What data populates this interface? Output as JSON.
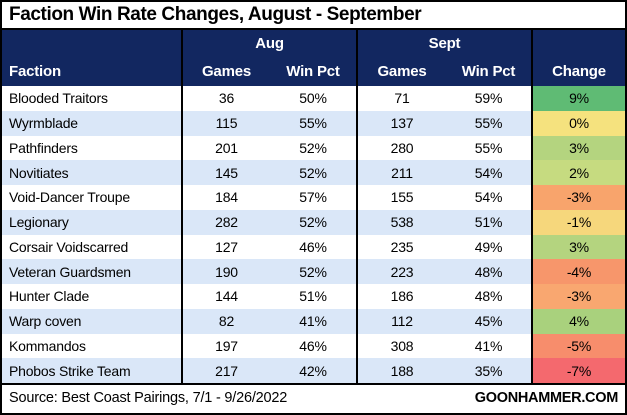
{
  "title": "Faction Win Rate Changes, August - September",
  "colors": {
    "header_bg": "#122760",
    "stripe_bg": "#DAE7F8",
    "border": "#000000"
  },
  "header": {
    "faction_label": "Faction",
    "group_aug": "Aug",
    "group_sept": "Sept",
    "aug_games_label": "Games",
    "aug_winpct_label": "Win Pct",
    "sept_games_label": "Games",
    "sept_winpct_label": "Win Pct",
    "change_label": "Change"
  },
  "table": {
    "rows": [
      {
        "faction": "Blooded Traitors",
        "aug_games": "36",
        "aug_win_pct": "50%",
        "sept_games": "71",
        "sept_win_pct": "59%",
        "change": "9%",
        "change_color": "#5FBB74"
      },
      {
        "faction": "Wyrmblade",
        "aug_games": "115",
        "aug_win_pct": "55%",
        "sept_games": "137",
        "sept_win_pct": "55%",
        "change": "0%",
        "change_color": "#F5E27E"
      },
      {
        "faction": "Pathfinders",
        "aug_games": "201",
        "aug_win_pct": "52%",
        "sept_games": "280",
        "sept_win_pct": "55%",
        "change": "3%",
        "change_color": "#B4D47F"
      },
      {
        "faction": "Novitiates",
        "aug_games": "145",
        "aug_win_pct": "52%",
        "sept_games": "211",
        "sept_win_pct": "54%",
        "change": "2%",
        "change_color": "#C6DB80"
      },
      {
        "faction": "Void-Dancer Troupe",
        "aug_games": "184",
        "aug_win_pct": "57%",
        "sept_games": "155",
        "sept_win_pct": "54%",
        "change": "-3%",
        "change_color": "#F8A46C"
      },
      {
        "faction": "Legionary",
        "aug_games": "282",
        "aug_win_pct": "52%",
        "sept_games": "538",
        "sept_win_pct": "51%",
        "change": "-1%",
        "change_color": "#F6D77C"
      },
      {
        "faction": "Corsair Voidscarred",
        "aug_games": "127",
        "aug_win_pct": "46%",
        "sept_games": "235",
        "sept_win_pct": "49%",
        "change": "3%",
        "change_color": "#B4D47F"
      },
      {
        "faction": "Veteran Guardsmen",
        "aug_games": "190",
        "aug_win_pct": "52%",
        "sept_games": "223",
        "sept_win_pct": "48%",
        "change": "-4%",
        "change_color": "#F7966B"
      },
      {
        "faction": "Hunter Clade",
        "aug_games": "144",
        "aug_win_pct": "51%",
        "sept_games": "186",
        "sept_win_pct": "48%",
        "change": "-3%",
        "change_color": "#F9A770"
      },
      {
        "faction": "Warp coven",
        "aug_games": "82",
        "aug_win_pct": "41%",
        "sept_games": "112",
        "sept_win_pct": "45%",
        "change": "4%",
        "change_color": "#A9D17D"
      },
      {
        "faction": "Kommandos",
        "aug_games": "197",
        "aug_win_pct": "46%",
        "sept_games": "308",
        "sept_win_pct": "41%",
        "change": "-5%",
        "change_color": "#F78D6C"
      },
      {
        "faction": "Phobos Strike Team",
        "aug_games": "217",
        "aug_win_pct": "42%",
        "sept_games": "188",
        "sept_win_pct": "35%",
        "change": "-7%",
        "change_color": "#F4696E"
      }
    ]
  },
  "footer": {
    "source": "Source: Best Coast Pairings, 7/1 - 9/26/2022",
    "brand": "GOONHAMMER.COM"
  },
  "chart_data": {
    "type": "table",
    "title": "Faction Win Rate Changes, August - September",
    "columns": [
      "Faction",
      "Aug Games",
      "Aug Win Pct",
      "Sept Games",
      "Sept Win Pct",
      "Change"
    ],
    "rows": [
      [
        "Blooded Traitors",
        36,
        "50%",
        71,
        "59%",
        "9%"
      ],
      [
        "Wyrmblade",
        115,
        "55%",
        137,
        "55%",
        "0%"
      ],
      [
        "Pathfinders",
        201,
        "52%",
        280,
        "55%",
        "3%"
      ],
      [
        "Novitiates",
        145,
        "52%",
        211,
        "54%",
        "2%"
      ],
      [
        "Void-Dancer Troupe",
        184,
        "57%",
        155,
        "54%",
        "-3%"
      ],
      [
        "Legionary",
        282,
        "52%",
        538,
        "51%",
        "-1%"
      ],
      [
        "Corsair Voidscarred",
        127,
        "46%",
        235,
        "49%",
        "3%"
      ],
      [
        "Veteran Guardsmen",
        190,
        "52%",
        223,
        "48%",
        "-4%"
      ],
      [
        "Hunter Clade",
        144,
        "51%",
        186,
        "48%",
        "-3%"
      ],
      [
        "Warp coven",
        82,
        "41%",
        112,
        "45%",
        "4%"
      ],
      [
        "Kommandos",
        197,
        "46%",
        308,
        "41%",
        "-5%"
      ],
      [
        "Phobos Strike Team",
        217,
        "42%",
        188,
        "35%",
        "-7%"
      ]
    ],
    "conditional_formatting": "Change column: 3-color scale red (#F4696E, -7%) through yellow (#F5E27E, 0%) to green (#5FBB74, +9%)",
    "source": "Best Coast Pairings, 7/1 - 9/26/2022"
  }
}
